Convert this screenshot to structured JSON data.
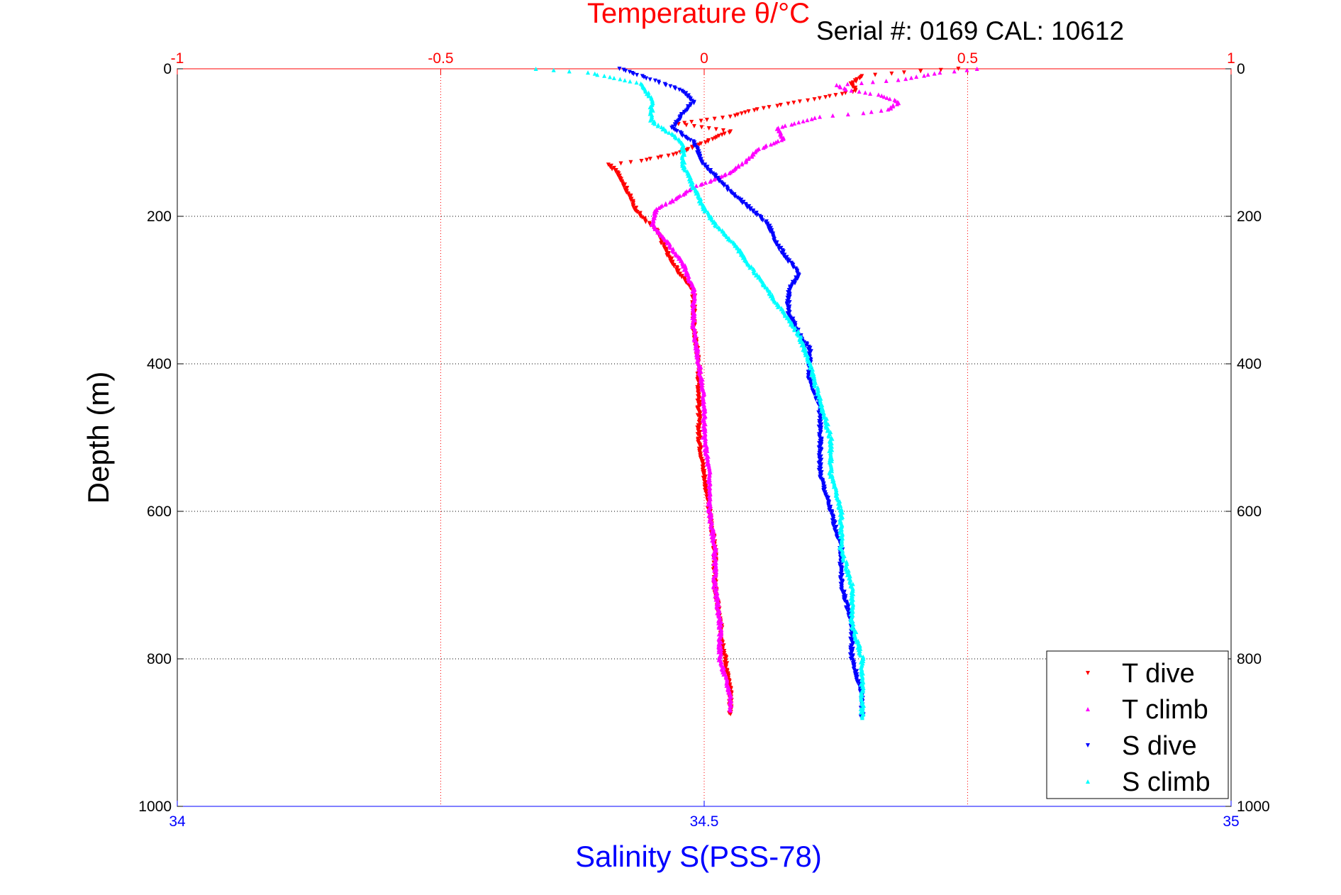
{
  "chart_data": {
    "type": "scatter",
    "top_axis": {
      "label": "Temperature θ/°C",
      "range": [
        -1,
        1
      ],
      "ticks": [
        -1,
        -0.5,
        0,
        0.5,
        1
      ],
      "tick_labels": [
        "-1",
        "-0.5",
        "0",
        "0.5",
        "1"
      ],
      "color": "#ff0000",
      "grid": true
    },
    "bottom_axis": {
      "label": "Salinity S(PSS-78)",
      "range": [
        34,
        35
      ],
      "ticks": [
        34,
        34.5,
        35
      ],
      "tick_labels": [
        "34",
        "34.5",
        "35"
      ],
      "color": "#0000ff",
      "grid": false
    },
    "y_axis": {
      "label": "Depth (m)",
      "range": [
        0,
        1000
      ],
      "reversed": true,
      "ticks": [
        0,
        200,
        400,
        600,
        800,
        1000
      ],
      "tick_labels": [
        "0",
        "200",
        "400",
        "600",
        "800",
        "1000"
      ],
      "grid": true
    },
    "annotation": "Serial #: 0169 CAL: 10612",
    "legend_position": "bottom-right",
    "series": [
      {
        "name": "T dive",
        "axis": "top",
        "color": "#ff0000",
        "marker": "triangle-down",
        "points": [
          [
            0.48,
            0
          ],
          [
            0.38,
            5
          ],
          [
            0.3,
            10
          ],
          [
            0.28,
            20
          ],
          [
            0.29,
            30
          ],
          [
            0.22,
            40
          ],
          [
            0.1,
            55
          ],
          [
            0.05,
            65
          ],
          [
            -0.05,
            75
          ],
          [
            0.05,
            85
          ],
          [
            0.0,
            100
          ],
          [
            -0.05,
            115
          ],
          [
            -0.12,
            125
          ],
          [
            -0.18,
            130
          ],
          [
            -0.16,
            145
          ],
          [
            -0.15,
            160
          ],
          [
            -0.14,
            175
          ],
          [
            -0.13,
            190
          ],
          [
            -0.12,
            200
          ],
          [
            -0.09,
            220
          ],
          [
            -0.07,
            250
          ],
          [
            -0.05,
            275
          ],
          [
            -0.02,
            300
          ],
          [
            -0.02,
            350
          ],
          [
            -0.01,
            400
          ],
          [
            -0.01,
            450
          ],
          [
            -0.01,
            500
          ],
          [
            0.0,
            550
          ],
          [
            0.01,
            600
          ],
          [
            0.02,
            650
          ],
          [
            0.02,
            700
          ],
          [
            0.03,
            750
          ],
          [
            0.04,
            800
          ],
          [
            0.05,
            850
          ],
          [
            0.05,
            875
          ]
        ]
      },
      {
        "name": "T climb",
        "axis": "top",
        "color": "#ff00ff",
        "marker": "triangle-up",
        "points": [
          [
            0.52,
            0
          ],
          [
            0.45,
            5
          ],
          [
            0.37,
            15
          ],
          [
            0.25,
            22
          ],
          [
            0.27,
            28
          ],
          [
            0.33,
            35
          ],
          [
            0.37,
            45
          ],
          [
            0.35,
            55
          ],
          [
            0.3,
            60
          ],
          [
            0.22,
            65
          ],
          [
            0.14,
            80
          ],
          [
            0.15,
            95
          ],
          [
            0.1,
            110
          ],
          [
            0.08,
            125
          ],
          [
            0.05,
            140
          ],
          [
            0.02,
            150
          ],
          [
            -0.02,
            160
          ],
          [
            -0.05,
            175
          ],
          [
            -0.09,
            190
          ],
          [
            -0.1,
            210
          ],
          [
            -0.07,
            235
          ],
          [
            -0.04,
            265
          ],
          [
            -0.02,
            300
          ],
          [
            -0.02,
            350
          ],
          [
            -0.01,
            400
          ],
          [
            0.0,
            450
          ],
          [
            0.0,
            500
          ],
          [
            0.01,
            550
          ],
          [
            0.01,
            600
          ],
          [
            0.02,
            650
          ],
          [
            0.02,
            700
          ],
          [
            0.03,
            750
          ],
          [
            0.03,
            800
          ],
          [
            0.05,
            850
          ],
          [
            0.05,
            870
          ]
        ]
      },
      {
        "name": "S dive",
        "axis": "bottom",
        "color": "#0000ff",
        "marker": "triangle-down",
        "points": [
          [
            34.42,
            0
          ],
          [
            34.44,
            10
          ],
          [
            34.48,
            30
          ],
          [
            34.49,
            45
          ],
          [
            34.48,
            60
          ],
          [
            34.47,
            80
          ],
          [
            34.49,
            100
          ],
          [
            34.5,
            130
          ],
          [
            34.52,
            160
          ],
          [
            34.54,
            185
          ],
          [
            34.56,
            210
          ],
          [
            34.57,
            240
          ],
          [
            34.58,
            260
          ],
          [
            34.59,
            280
          ],
          [
            34.58,
            300
          ],
          [
            34.58,
            330
          ],
          [
            34.59,
            360
          ],
          [
            34.6,
            380
          ],
          [
            34.6,
            420
          ],
          [
            34.61,
            460
          ],
          [
            34.61,
            500
          ],
          [
            34.61,
            550
          ],
          [
            34.62,
            600
          ],
          [
            34.63,
            650
          ],
          [
            34.63,
            700
          ],
          [
            34.64,
            750
          ],
          [
            34.64,
            800
          ],
          [
            34.65,
            850
          ],
          [
            34.65,
            880
          ]
        ]
      },
      {
        "name": "S climb",
        "axis": "bottom",
        "color": "#00ffff",
        "marker": "triangle-up",
        "points": [
          [
            34.34,
            0
          ],
          [
            34.39,
            5
          ],
          [
            34.44,
            20
          ],
          [
            34.45,
            40
          ],
          [
            34.45,
            70
          ],
          [
            34.48,
            100
          ],
          [
            34.48,
            130
          ],
          [
            34.49,
            160
          ],
          [
            34.5,
            190
          ],
          [
            34.51,
            210
          ],
          [
            34.53,
            240
          ],
          [
            34.55,
            280
          ],
          [
            34.57,
            320
          ],
          [
            34.59,
            360
          ],
          [
            34.6,
            400
          ],
          [
            34.61,
            450
          ],
          [
            34.62,
            500
          ],
          [
            34.62,
            550
          ],
          [
            34.63,
            600
          ],
          [
            34.63,
            650
          ],
          [
            34.64,
            700
          ],
          [
            34.64,
            750
          ],
          [
            34.65,
            800
          ],
          [
            34.65,
            850
          ],
          [
            34.65,
            880
          ]
        ]
      }
    ]
  }
}
